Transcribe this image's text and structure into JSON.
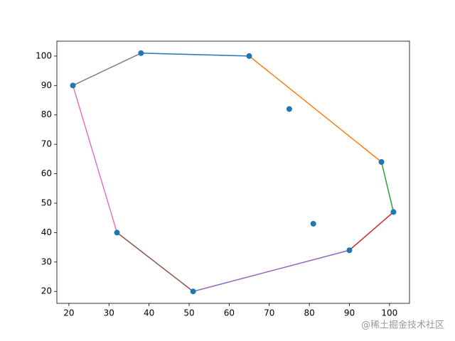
{
  "chart_data": {
    "type": "scatter",
    "x": [
      38,
      65,
      75,
      98,
      101,
      81,
      90,
      51,
      32,
      21
    ],
    "y": [
      101,
      100,
      82,
      64,
      47,
      43,
      34,
      20,
      40,
      90
    ],
    "color": "#1f77b4",
    "segments": [
      {
        "color": "#1f77b4",
        "x": [
          38,
          65
        ],
        "y": [
          101,
          100
        ]
      },
      {
        "color": "#ff7f0e",
        "x": [
          65,
          98
        ],
        "y": [
          100,
          64
        ]
      },
      {
        "color": "#2ca02c",
        "x": [
          98,
          101
        ],
        "y": [
          64,
          47
        ]
      },
      {
        "color": "#d62728",
        "x": [
          101,
          90
        ],
        "y": [
          47,
          34
        ]
      },
      {
        "color": "#9467bd",
        "x": [
          90,
          51
        ],
        "y": [
          34,
          20
        ]
      },
      {
        "color": "#8c564b",
        "x": [
          51,
          32
        ],
        "y": [
          20,
          40
        ]
      },
      {
        "color": "#e377c2",
        "x": [
          32,
          21
        ],
        "y": [
          40,
          90
        ]
      },
      {
        "color": "#7f7f7f",
        "x": [
          21,
          38
        ],
        "y": [
          90,
          101
        ]
      }
    ],
    "xlim": [
      17,
      105
    ],
    "ylim": [
      15.95,
      105.05
    ],
    "xticks": [
      20,
      30,
      40,
      50,
      60,
      70,
      80,
      90,
      100
    ],
    "yticks": [
      20,
      30,
      40,
      50,
      60,
      70,
      80,
      90,
      100
    ]
  },
  "watermark": "@稀土掘金技术社区"
}
